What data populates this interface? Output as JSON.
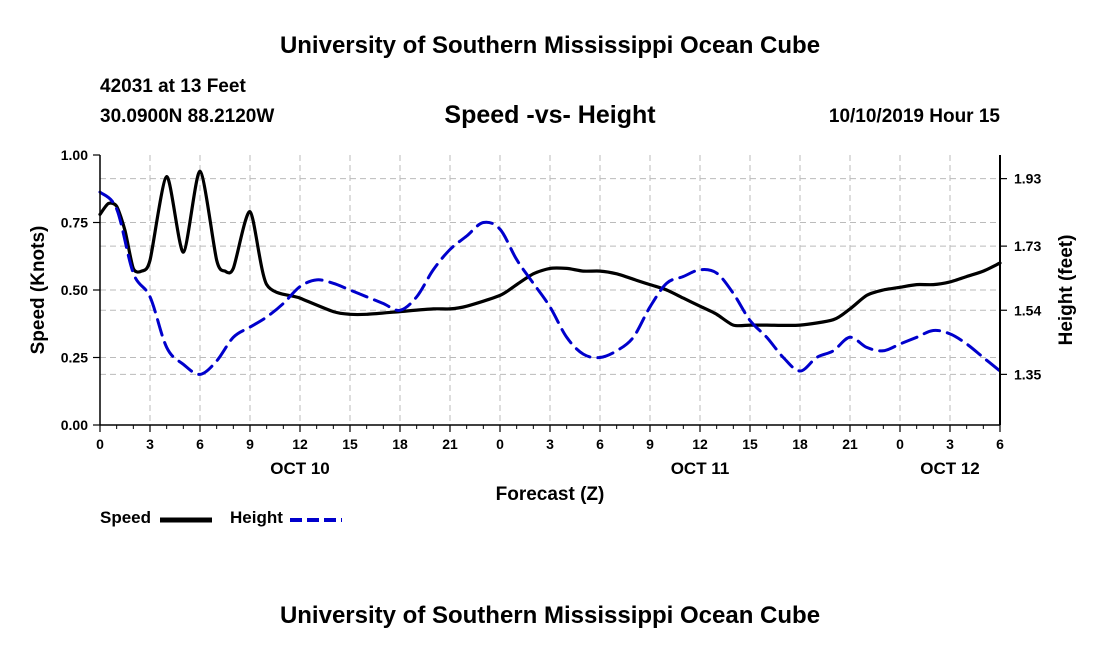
{
  "header": {
    "title": "University of Southern Mississippi Ocean Cube",
    "station": "42031 at 13 Feet",
    "coords": "30.0900N 88.2120W",
    "subtitle": "Speed -vs- Height",
    "datetime": "10/10/2019 Hour 15"
  },
  "footer": {
    "title": "University of Southern Mississippi Ocean Cube"
  },
  "legend": {
    "speed_label": "Speed",
    "height_label": "Height"
  },
  "colors": {
    "speed": "#000000",
    "height": "#0000cc",
    "grid": "#bbbbbb"
  },
  "chart_data": {
    "type": "line",
    "title": "Speed -vs- Height",
    "xlabel": "Forecast (Z)",
    "ylabel": "Speed (Knots)",
    "y2label": "Height (feet)",
    "xlim": [
      0,
      54
    ],
    "ylim": [
      0,
      1.0
    ],
    "y2lim": [
      1.2,
      2.0
    ],
    "x_ticks": [
      0,
      3,
      6,
      9,
      12,
      15,
      18,
      21,
      24,
      27,
      30,
      33,
      36,
      39,
      42,
      45,
      48,
      51,
      54
    ],
    "x_tick_labels": [
      "0",
      "3",
      "6",
      "9",
      "12",
      "15",
      "18",
      "21",
      "0",
      "3",
      "6",
      "9",
      "12",
      "15",
      "18",
      "21",
      "0",
      "3",
      "6"
    ],
    "day_labels": [
      {
        "x": 12,
        "label": "OCT 10"
      },
      {
        "x": 36,
        "label": "OCT 11"
      },
      {
        "x": 51,
        "label": "OCT 12"
      }
    ],
    "y_ticks": [
      0.0,
      0.25,
      0.5,
      0.75,
      1.0
    ],
    "y_tick_labels": [
      "0.00",
      "0.25",
      "0.50",
      "0.75",
      "1.00"
    ],
    "y2_ticks": [
      1.35,
      1.54,
      1.73,
      1.93
    ],
    "y2_tick_labels": [
      "1.35",
      "1.54",
      "1.73",
      "1.93"
    ],
    "grid": true,
    "series": [
      {
        "name": "Speed",
        "axis": "left",
        "style": "solid",
        "x": [
          0,
          0.5,
          1,
          1.5,
          2,
          2.5,
          3,
          4,
          5,
          6,
          7,
          7.5,
          8,
          9,
          10,
          12,
          14,
          15,
          16,
          18,
          20,
          21,
          22,
          24,
          25,
          26,
          27,
          28,
          29,
          30,
          31,
          32,
          33,
          34,
          35,
          36,
          37,
          38,
          39,
          40,
          42,
          44,
          45,
          46,
          47,
          48,
          49,
          50,
          51,
          52,
          53,
          54
        ],
        "values": [
          0.78,
          0.82,
          0.81,
          0.72,
          0.58,
          0.57,
          0.61,
          0.92,
          0.64,
          0.94,
          0.61,
          0.57,
          0.58,
          0.79,
          0.52,
          0.47,
          0.42,
          0.41,
          0.41,
          0.42,
          0.43,
          0.43,
          0.44,
          0.48,
          0.52,
          0.56,
          0.58,
          0.58,
          0.57,
          0.57,
          0.56,
          0.54,
          0.52,
          0.5,
          0.47,
          0.44,
          0.41,
          0.37,
          0.37,
          0.37,
          0.37,
          0.39,
          0.43,
          0.48,
          0.5,
          0.51,
          0.52,
          0.52,
          0.53,
          0.55,
          0.57,
          0.6
        ]
      },
      {
        "name": "Height",
        "axis": "right",
        "style": "dashed",
        "x": [
          0,
          1,
          2,
          3,
          4,
          5,
          6,
          7,
          8,
          9,
          10,
          11,
          12,
          13,
          14,
          15,
          16,
          17,
          18,
          19,
          20,
          21,
          22,
          23,
          24,
          25,
          26,
          27,
          28,
          29,
          30,
          31,
          32,
          33,
          34,
          35,
          36,
          37,
          38,
          39,
          40,
          41,
          42,
          43,
          44,
          45,
          46,
          47,
          48,
          49,
          50,
          51,
          52,
          53,
          54
        ],
        "values": [
          1.89,
          1.84,
          1.65,
          1.58,
          1.43,
          1.38,
          1.35,
          1.39,
          1.46,
          1.49,
          1.52,
          1.56,
          1.61,
          1.63,
          1.62,
          1.6,
          1.58,
          1.56,
          1.54,
          1.58,
          1.66,
          1.72,
          1.76,
          1.8,
          1.78,
          1.69,
          1.62,
          1.55,
          1.46,
          1.41,
          1.4,
          1.42,
          1.46,
          1.55,
          1.62,
          1.64,
          1.66,
          1.65,
          1.59,
          1.51,
          1.46,
          1.4,
          1.36,
          1.4,
          1.42,
          1.46,
          1.43,
          1.42,
          1.44,
          1.46,
          1.48,
          1.47,
          1.44,
          1.4,
          1.36
        ]
      }
    ]
  }
}
